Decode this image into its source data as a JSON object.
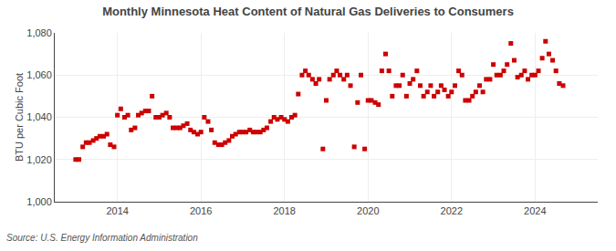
{
  "chart_data": {
    "type": "scatter",
    "title": "Monthly Minnesota Heat Content of Natural Gas Deliveries to Consumers",
    "ylabel": "BTU per Cubic Foot",
    "annotations": [
      "Source: U.S. Energy Information Administration"
    ],
    "color": "#cc0000",
    "marker": "square",
    "grid": true,
    "xlim": [
      2012.5,
      2025.5
    ],
    "xticks": [
      2014,
      2016,
      2018,
      2020,
      2022,
      2024
    ],
    "ylim": [
      1000,
      1080
    ],
    "yticks": [
      {
        "value": 1000,
        "label": "1,000"
      },
      {
        "value": 1020,
        "label": "1,020"
      },
      {
        "value": 1040,
        "label": "1,040"
      },
      {
        "value": 1060,
        "label": "1,060"
      },
      {
        "value": 1080,
        "label": "1,080"
      }
    ],
    "x": [
      2013.0,
      2013.08,
      2013.17,
      2013.25,
      2013.33,
      2013.42,
      2013.5,
      2013.58,
      2013.67,
      2013.75,
      2013.83,
      2013.92,
      2014.0,
      2014.08,
      2014.17,
      2014.25,
      2014.33,
      2014.42,
      2014.5,
      2014.58,
      2014.67,
      2014.75,
      2014.83,
      2014.92,
      2015.0,
      2015.08,
      2015.17,
      2015.25,
      2015.33,
      2015.42,
      2015.5,
      2015.58,
      2015.67,
      2015.75,
      2015.83,
      2015.92,
      2016.0,
      2016.08,
      2016.17,
      2016.25,
      2016.33,
      2016.42,
      2016.5,
      2016.58,
      2016.67,
      2016.75,
      2016.83,
      2016.92,
      2017.0,
      2017.08,
      2017.17,
      2017.25,
      2017.33,
      2017.42,
      2017.5,
      2017.58,
      2017.67,
      2017.75,
      2017.83,
      2017.92,
      2018.0,
      2018.08,
      2018.17,
      2018.25,
      2018.33,
      2018.42,
      2018.5,
      2018.58,
      2018.67,
      2018.75,
      2018.83,
      2018.92,
      2019.0,
      2019.08,
      2019.17,
      2019.25,
      2019.33,
      2019.42,
      2019.5,
      2019.58,
      2019.67,
      2019.75,
      2019.83,
      2019.92,
      2020.0,
      2020.08,
      2020.17,
      2020.25,
      2020.33,
      2020.42,
      2020.5,
      2020.58,
      2020.67,
      2020.75,
      2020.83,
      2020.92,
      2021.0,
      2021.08,
      2021.17,
      2021.25,
      2021.33,
      2021.42,
      2021.5,
      2021.58,
      2021.67,
      2021.75,
      2021.83,
      2021.92,
      2022.0,
      2022.08,
      2022.17,
      2022.25,
      2022.33,
      2022.42,
      2022.5,
      2022.58,
      2022.67,
      2022.75,
      2022.83,
      2022.92,
      2023.0,
      2023.08,
      2023.17,
      2023.25,
      2023.33,
      2023.42,
      2023.5,
      2023.58,
      2023.67,
      2023.75,
      2023.83,
      2023.92,
      2024.0,
      2024.08,
      2024.17,
      2024.25,
      2024.33,
      2024.42,
      2024.5,
      2024.58,
      2024.67
    ],
    "values": [
      1020,
      1020,
      1026,
      1028,
      1028,
      1029,
      1030,
      1031,
      1031,
      1032,
      1027,
      1026,
      1041,
      1044,
      1040,
      1041,
      1034,
      1035,
      1041,
      1042,
      1043,
      1043,
      1050,
      1040,
      1040,
      1041,
      1042,
      1040,
      1035,
      1035,
      1035,
      1036,
      1037,
      1034,
      1033,
      1032,
      1033,
      1040,
      1038,
      1034,
      1028,
      1027,
      1027,
      1028,
      1029,
      1031,
      1032,
      1033,
      1033,
      1033,
      1034,
      1033,
      1033,
      1033,
      1034,
      1035,
      1038,
      1040,
      1039,
      1040,
      1039,
      1038,
      1040,
      1041,
      1051,
      1060,
      1062,
      1060,
      1058,
      1056,
      1058,
      1025,
      1048,
      1058,
      1060,
      1062,
      1060,
      1058,
      1060,
      1055,
      1026,
      1047,
      1060,
      1025,
      1048,
      1048,
      1047,
      1046,
      1062,
      1070,
      1062,
      1050,
      1055,
      1055,
      1060,
      1050,
      1056,
      1058,
      1062,
      1055,
      1050,
      1052,
      1055,
      1050,
      1052,
      1055,
      1053,
      1050,
      1052,
      1055,
      1062,
      1060,
      1048,
      1048,
      1050,
      1052,
      1055,
      1052,
      1058,
      1058,
      1065,
      1060,
      1060,
      1062,
      1065,
      1075,
      1067,
      1059,
      1060,
      1062,
      1058,
      1060,
      1060,
      1062,
      1068,
      1076,
      1070,
      1067,
      1062,
      1056,
      1055
    ]
  }
}
